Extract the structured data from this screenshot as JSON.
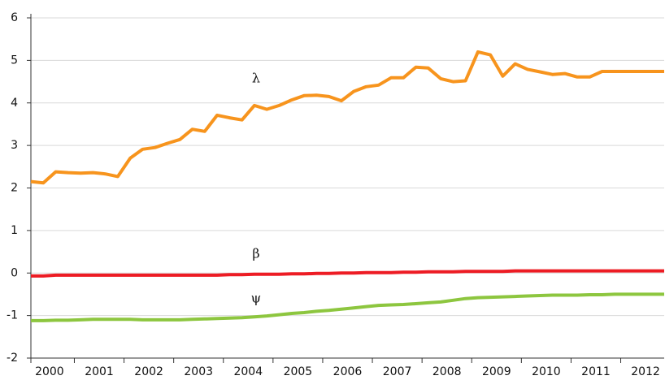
{
  "chart_data": {
    "type": "line",
    "categories": [
      "2000",
      null,
      null,
      null,
      "2001",
      null,
      null,
      null,
      "2002",
      null,
      null,
      null,
      "2003",
      null,
      null,
      null,
      "2004",
      null,
      null,
      null,
      "2005",
      null,
      null,
      null,
      "2006",
      null,
      null,
      null,
      "2007",
      null,
      null,
      null,
      "2008",
      null,
      null,
      null,
      "2009",
      null,
      null,
      null,
      "2010",
      null,
      null,
      null,
      "2011",
      null,
      null,
      null,
      "2012",
      null,
      null,
      null
    ],
    "ylim": [
      -2,
      6
    ],
    "yticks": [
      -2,
      -1,
      0,
      1,
      2,
      3,
      4,
      5,
      6
    ],
    "grid": true,
    "series": [
      {
        "name": "λ",
        "color": "#f7941d",
        "values": [
          2.15,
          2.12,
          2.38,
          2.36,
          2.35,
          2.36,
          2.33,
          2.27,
          2.7,
          2.91,
          2.95,
          3.05,
          3.14,
          3.38,
          3.33,
          3.71,
          3.65,
          3.6,
          3.94,
          3.85,
          3.94,
          4.07,
          4.17,
          4.18,
          4.15,
          4.05,
          4.27,
          4.38,
          4.42,
          4.59,
          4.59,
          4.84,
          4.82,
          4.57,
          4.5,
          4.52,
          5.2,
          5.13,
          4.63,
          4.92,
          4.79,
          4.73,
          4.67,
          4.69,
          4.61,
          4.61,
          4.74,
          4.74,
          4.74,
          4.74,
          4.74,
          4.74
        ]
      },
      {
        "name": "β",
        "color": "#ed1c24",
        "values": [
          -0.07,
          -0.07,
          -0.05,
          -0.05,
          -0.05,
          -0.05,
          -0.05,
          -0.05,
          -0.05,
          -0.05,
          -0.05,
          -0.05,
          -0.05,
          -0.05,
          -0.05,
          -0.05,
          -0.04,
          -0.04,
          -0.03,
          -0.03,
          -0.03,
          -0.02,
          -0.02,
          -0.01,
          -0.01,
          0,
          0,
          0.01,
          0.01,
          0.01,
          0.02,
          0.02,
          0.03,
          0.03,
          0.03,
          0.04,
          0.04,
          0.04,
          0.04,
          0.05,
          0.05,
          0.05,
          0.05,
          0.05,
          0.05,
          0.05,
          0.05,
          0.05,
          0.05,
          0.05,
          0.05,
          0.05
        ]
      },
      {
        "name": "ψ",
        "color": "#8dc63f",
        "values": [
          -1.12,
          -1.12,
          -1.11,
          -1.11,
          -1.1,
          -1.09,
          -1.09,
          -1.09,
          -1.09,
          -1.1,
          -1.1,
          -1.1,
          -1.1,
          -1.09,
          -1.08,
          -1.07,
          -1.06,
          -1.05,
          -1.03,
          -1.01,
          -0.98,
          -0.95,
          -0.93,
          -0.9,
          -0.88,
          -0.85,
          -0.82,
          -0.79,
          -0.76,
          -0.75,
          -0.74,
          -0.72,
          -0.7,
          -0.68,
          -0.64,
          -0.6,
          -0.58,
          -0.57,
          -0.56,
          -0.55,
          -0.54,
          -0.53,
          -0.52,
          -0.52,
          -0.52,
          -0.51,
          -0.51,
          -0.5,
          -0.5,
          -0.5,
          -0.5,
          -0.5
        ]
      }
    ]
  }
}
